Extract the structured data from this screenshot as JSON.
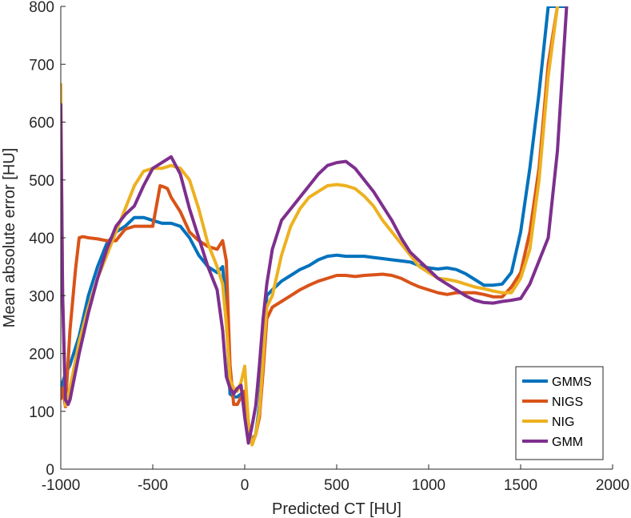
{
  "chart_data": {
    "type": "line",
    "title": "",
    "xlabel": "Predicted CT [HU]",
    "ylabel": "Mean absolute error [HU]",
    "xlim": [
      -1000,
      2000
    ],
    "ylim": [
      0,
      800
    ],
    "xticks": [
      -1000,
      -500,
      0,
      500,
      1000,
      1500,
      2000
    ],
    "xtick_labels": [
      "-1000",
      "-500",
      "0",
      "500",
      "1000",
      "1500",
      "2000"
    ],
    "yticks": [
      0,
      100,
      200,
      300,
      400,
      500,
      600,
      700,
      800
    ],
    "ytick_labels": [
      "0",
      "100",
      "200",
      "300",
      "400",
      "500",
      "600",
      "700",
      "800"
    ],
    "grid": false,
    "legend_position": "bottom-right",
    "series": [
      {
        "name": "GMMS",
        "color": "#0072BD",
        "x": [
          -1000,
          -990,
          -975,
          -950,
          -900,
          -850,
          -800,
          -750,
          -700,
          -650,
          -600,
          -550,
          -500,
          -450,
          -400,
          -350,
          -300,
          -250,
          -200,
          -150,
          -120,
          -100,
          -80,
          -60,
          -40,
          -20,
          0,
          20,
          40,
          60,
          80,
          100,
          120,
          150,
          200,
          250,
          300,
          350,
          400,
          450,
          500,
          550,
          600,
          650,
          700,
          750,
          800,
          850,
          900,
          950,
          1000,
          1050,
          1100,
          1150,
          1200,
          1250,
          1300,
          1350,
          1400,
          1450,
          1500,
          1550,
          1600,
          1650,
          1700,
          1750
        ],
        "values": [
          135,
          150,
          165,
          180,
          230,
          300,
          350,
          390,
          410,
          420,
          435,
          435,
          430,
          425,
          425,
          420,
          400,
          370,
          350,
          340,
          350,
          280,
          130,
          125,
          125,
          130,
          125,
          70,
          50,
          60,
          110,
          210,
          300,
          310,
          325,
          335,
          345,
          352,
          362,
          368,
          370,
          368,
          368,
          368,
          366,
          364,
          362,
          360,
          358,
          352,
          348,
          346,
          348,
          345,
          338,
          328,
          318,
          318,
          320,
          340,
          410,
          520,
          650,
          800,
          800,
          800
        ]
      },
      {
        "name": "NIGS",
        "color": "#D95319",
        "x": [
          -1000,
          -990,
          -975,
          -950,
          -920,
          -900,
          -880,
          -850,
          -800,
          -750,
          -700,
          -650,
          -600,
          -550,
          -500,
          -460,
          -440,
          -420,
          -400,
          -350,
          -300,
          -250,
          -200,
          -150,
          -120,
          -100,
          -80,
          -60,
          -40,
          -20,
          0,
          20,
          40,
          60,
          80,
          100,
          120,
          150,
          200,
          250,
          300,
          350,
          400,
          450,
          500,
          550,
          600,
          650,
          700,
          750,
          800,
          850,
          900,
          950,
          1000,
          1050,
          1100,
          1150,
          1200,
          1250,
          1300,
          1350,
          1400,
          1450,
          1500,
          1550,
          1600,
          1650,
          1700
        ],
        "values": [
          122,
          140,
          108,
          240,
          345,
          400,
          402,
          400,
          398,
          395,
          395,
          415,
          420,
          420,
          420,
          490,
          488,
          485,
          470,
          445,
          410,
          395,
          385,
          380,
          395,
          360,
          180,
          112,
          112,
          125,
          135,
          80,
          45,
          60,
          90,
          170,
          260,
          280,
          290,
          300,
          310,
          318,
          325,
          330,
          335,
          335,
          333,
          335,
          336,
          337,
          335,
          330,
          322,
          315,
          310,
          305,
          302,
          305,
          305,
          305,
          302,
          298,
          298,
          315,
          340,
          410,
          520,
          700,
          800
        ]
      },
      {
        "name": "NIG",
        "color": "#EDB120",
        "x": [
          -1000,
          -990,
          -975,
          -950,
          -900,
          -850,
          -800,
          -750,
          -700,
          -650,
          -600,
          -550,
          -500,
          -450,
          -400,
          -350,
          -300,
          -250,
          -200,
          -150,
          -120,
          -100,
          -80,
          -60,
          -40,
          -20,
          0,
          20,
          40,
          60,
          80,
          100,
          120,
          150,
          200,
          250,
          300,
          350,
          400,
          450,
          500,
          550,
          600,
          650,
          700,
          750,
          800,
          850,
          900,
          950,
          1000,
          1050,
          1100,
          1150,
          1200,
          1250,
          1300,
          1350,
          1400,
          1450,
          1500,
          1550,
          1600,
          1650,
          1700
        ],
        "values": [
          665,
          300,
          110,
          140,
          220,
          280,
          330,
          370,
          410,
          450,
          490,
          515,
          520,
          520,
          525,
          520,
          500,
          450,
          390,
          350,
          320,
          250,
          155,
          140,
          135,
          150,
          178,
          80,
          42,
          60,
          100,
          190,
          280,
          300,
          370,
          420,
          450,
          470,
          480,
          490,
          492,
          490,
          485,
          472,
          455,
          430,
          410,
          390,
          370,
          350,
          340,
          330,
          328,
          325,
          320,
          315,
          312,
          308,
          305,
          305,
          330,
          380,
          500,
          680,
          800
        ]
      },
      {
        "name": "GMM",
        "color": "#7E2F8E",
        "x": [
          -1000,
          -990,
          -975,
          -960,
          -950,
          -900,
          -850,
          -800,
          -750,
          -700,
          -650,
          -600,
          -550,
          -500,
          -450,
          -400,
          -350,
          -300,
          -250,
          -200,
          -150,
          -120,
          -100,
          -80,
          -60,
          -40,
          -20,
          0,
          20,
          40,
          60,
          80,
          100,
          120,
          150,
          200,
          250,
          300,
          350,
          400,
          450,
          500,
          550,
          600,
          650,
          700,
          750,
          800,
          850,
          900,
          950,
          1000,
          1050,
          1100,
          1150,
          1200,
          1250,
          1300,
          1350,
          1400,
          1450,
          1500,
          1550,
          1600,
          1650,
          1700,
          1750
        ],
        "values": [
          630,
          300,
          120,
          112,
          120,
          200,
          270,
          330,
          380,
          420,
          440,
          455,
          490,
          520,
          530,
          540,
          510,
          450,
          400,
          350,
          310,
          240,
          160,
          140,
          130,
          140,
          145,
          90,
          45,
          75,
          110,
          180,
          260,
          320,
          380,
          430,
          450,
          470,
          490,
          510,
          525,
          530,
          532,
          520,
          500,
          480,
          455,
          430,
          400,
          375,
          360,
          345,
          330,
          320,
          310,
          300,
          292,
          288,
          287,
          290,
          292,
          295,
          320,
          360,
          400,
          550,
          800
        ]
      }
    ]
  }
}
